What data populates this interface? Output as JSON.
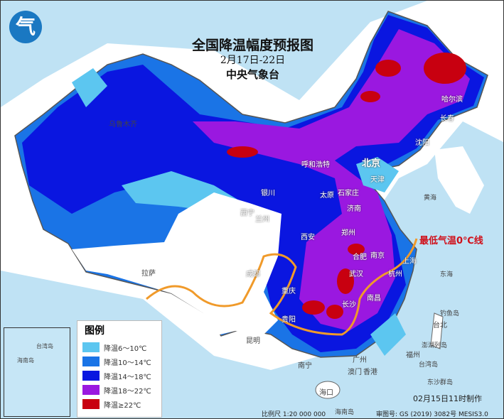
{
  "title": "全国降温幅度预报图",
  "date_range": "2月17日-22日",
  "issuer": "中央气象台",
  "logo_text": "气",
  "zero_line_label": "最低气温0℃线",
  "legend": {
    "title": "图例",
    "items": [
      {
        "label": "降温6～10℃",
        "color": "#5cc6f0"
      },
      {
        "label": "降温10～14℃",
        "color": "#1a74e6"
      },
      {
        "label": "降温14～18℃",
        "color": "#0a16e0"
      },
      {
        "label": "降温18～22℃",
        "color": "#9a18e0"
      },
      {
        "label": "降温≥22℃",
        "color": "#c80010"
      }
    ]
  },
  "cities": [
    "北京",
    "天津",
    "石家庄",
    "太原",
    "济南",
    "郑州",
    "西安",
    "合肥",
    "南京",
    "上海",
    "杭州",
    "武汉",
    "长沙",
    "南昌",
    "贵阳",
    "重庆",
    "成都",
    "昆明",
    "拉萨",
    "西宁",
    "兰州",
    "银川",
    "呼和浩特",
    "哈尔滨",
    "长春",
    "沈阳",
    "乌鲁木齐",
    "福州",
    "台北",
    "南宁",
    "广州",
    "澳门",
    "香港",
    "海口"
  ],
  "sea_labels": [
    "钓鱼岛",
    "澎湖列岛",
    "台湾岛",
    "东沙群岛",
    "海南岛",
    "东海",
    "黄海"
  ],
  "inset": {
    "label1": "台湾岛",
    "label2": "海南岛"
  },
  "footer": {
    "made": "02月15日11时制作",
    "scale": "比例尺 1:20 000 000",
    "review": "审图号: GS (2019) 3082号 MESIS3.0"
  }
}
